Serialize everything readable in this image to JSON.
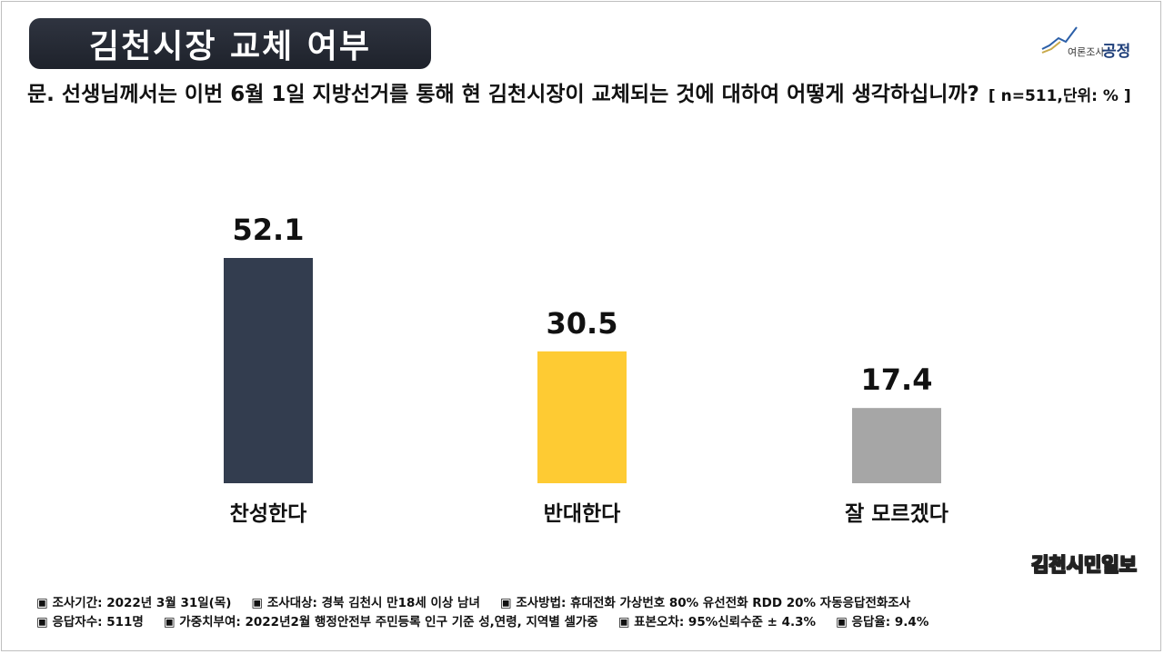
{
  "header": {
    "title": "김천시장 교체 여부",
    "logo_main": "공정",
    "logo_sub": "여론조사"
  },
  "question": {
    "text": "문. 선생님께서는 이번 6월 1일 지방선거를 통해 현 김천시장이 교체되는 것에 대하여 어떻게 생각하십니까?",
    "note": "[ n=511,단위: % ]"
  },
  "chart_data": {
    "type": "bar",
    "categories": [
      "찬성한다",
      "반대한다",
      "잘 모르겠다"
    ],
    "values": [
      52.1,
      30.5,
      17.4
    ],
    "value_labels": [
      "52.1",
      "30.5",
      "17.4"
    ],
    "colors": [
      "#333d4f",
      "#fecb33",
      "#a6a6a6"
    ],
    "ylim": [
      0,
      52.1
    ],
    "grid": false,
    "legend": "none"
  },
  "source": "김천시민일보",
  "footer": {
    "line1": [
      "▣ 조사기간: 2022년 3월 31일(목)",
      "▣ 조사대상: 경북 김천시 만18세 이상 남녀",
      "▣ 조사방법: 휴대전화 가상번호 80% 유선전화 RDD 20% 자동응답전화조사"
    ],
    "line2": [
      "▣ 응답자수: 511명",
      "▣ 가중치부여: 2022년2월 행정안전부 주민등록 인구 기준 성,연령, 지역별 셀가중",
      "▣ 표본오차: 95%신뢰수준 ± 4.3%",
      "▣ 응답율: 9.4%"
    ]
  }
}
